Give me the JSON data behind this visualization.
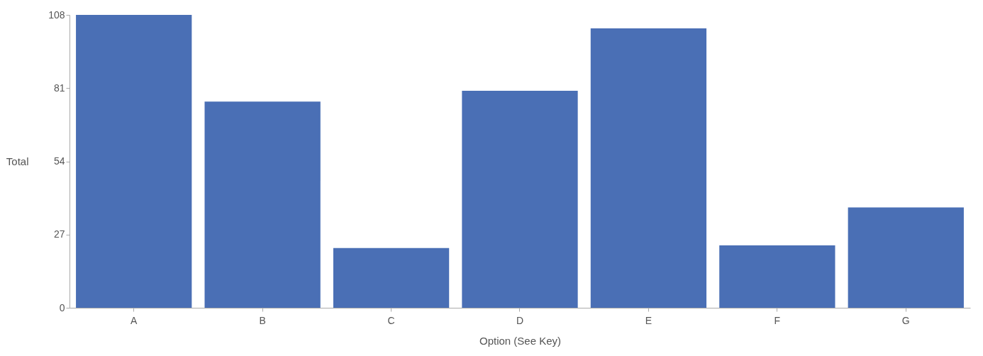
{
  "chart_data": {
    "type": "bar",
    "xlabel": "Option (See Key)",
    "ylabel": "Total",
    "categories": [
      "A",
      "B",
      "C",
      "D",
      "E",
      "F",
      "G"
    ],
    "values": [
      108,
      76,
      22,
      80,
      103,
      23,
      37
    ],
    "color": "#4a6fb5",
    "ylim": [
      0,
      108
    ],
    "yticks": [
      0,
      27,
      54,
      81,
      108
    ],
    "grid": false
  }
}
